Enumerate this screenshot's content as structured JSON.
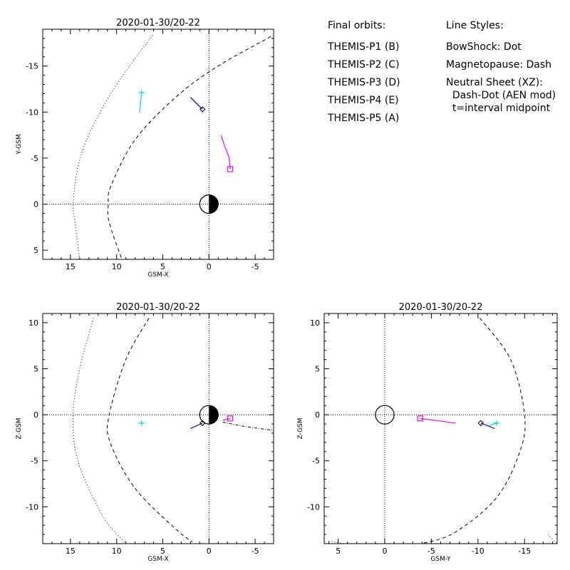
{
  "legend": {
    "orbits_title": "Final orbits:",
    "probes": [
      {
        "label": "THEMIS-P1 (B)",
        "color": "#ff0000"
      },
      {
        "label": "THEMIS-P2 (C)",
        "color": "#00dd00"
      },
      {
        "label": "THEMIS-P3 (D)",
        "color": "#00dddd"
      },
      {
        "label": "THEMIS-P4 (E)",
        "color": "#0000cc"
      },
      {
        "label": "THEMIS-P5 (A)",
        "color": "#ee00ee"
      }
    ],
    "styles_title": "Line Styles:",
    "styles": [
      "BowShock: Dot",
      "Magnetopause: Dash",
      "Neutral Sheet (XZ):",
      "  Dash-Dot (AEN mod)",
      "  t=interval midpoint"
    ]
  },
  "chart_data": [
    {
      "type": "line",
      "title": "2020-01-30/20-22",
      "xlabel": "GSM-X",
      "ylabel": "Y-GSM",
      "xlim": [
        18,
        -7
      ],
      "ylim": [
        6,
        -19
      ],
      "xticks": [
        15,
        10,
        5,
        0,
        -5
      ],
      "yticks": [
        -15,
        -10,
        -5,
        0,
        5
      ],
      "earth": {
        "x": 0,
        "y": 0,
        "radius": 1
      },
      "bow_shock": {
        "x": [
          14.0,
          14.5,
          14.7,
          14.2,
          12.8,
          10.0,
          6.0
        ],
        "y": [
          6,
          2,
          0,
          -4,
          -8,
          -13,
          -18.5
        ]
      },
      "magnetopause": {
        "x": [
          9.5,
          10.8,
          10.9,
          10.6,
          8.0,
          3.5,
          -1.0,
          -6.7
        ],
        "y": [
          5.8,
          2,
          0,
          -2,
          -7,
          -11.7,
          -15,
          -18.2
        ]
      },
      "orbits": [
        {
          "probe": "THEMIS-P3 (D)",
          "color": "#00dddd",
          "marker": "plus",
          "x": [
            7.5,
            7.3
          ],
          "y": [
            -10.0,
            -12.1
          ]
        },
        {
          "probe": "THEMIS-P4 (E)",
          "color": "#0000cc",
          "marker": "diamond",
          "x": [
            2.0,
            0.7
          ],
          "y": [
            -11.6,
            -10.3
          ]
        },
        {
          "probe": "THEMIS-P5 (A)",
          "color": "#ee00ee",
          "marker": "square",
          "x": [
            -1.3,
            -1.7,
            -2.2,
            -2.3
          ],
          "y": [
            -7.5,
            -6.3,
            -5.0,
            -3.8
          ]
        }
      ]
    },
    {
      "type": "line",
      "title": "2020-01-30/20-22",
      "xlabel": "GSM-X",
      "ylabel": "Z-GSM",
      "xlim": [
        18,
        -7
      ],
      "ylim": [
        -14,
        11
      ],
      "xticks": [
        15,
        10,
        5,
        0,
        -5
      ],
      "yticks": [
        10,
        5,
        0,
        -5,
        -10
      ],
      "earth": {
        "x": 0,
        "y": 0,
        "radius": 1
      },
      "bow_shock": {
        "x": [
          12.5,
          14.0,
          14.7,
          14.2,
          11.5,
          9.0
        ],
        "y": [
          10.5,
          5,
          0,
          -5,
          -11,
          -14
        ]
      },
      "magnetopause": {
        "x": [
          6.5,
          9.0,
          10.8,
          10.7,
          8.0,
          3.5,
          1.8
        ],
        "y": [
          10.5,
          6,
          0,
          -3,
          -8,
          -12.5,
          -13.8
        ]
      },
      "neutral_sheet": {
        "x": [
          -1.5,
          -3.5,
          -5.5,
          -7
        ],
        "y": [
          -0.8,
          -1.2,
          -1.5,
          -1.7
        ]
      },
      "orbits": [
        {
          "probe": "THEMIS-P3 (D)",
          "color": "#00dddd",
          "marker": "plus",
          "x": [
            7.6,
            7.3
          ],
          "y": [
            -0.9,
            -0.9
          ]
        },
        {
          "probe": "THEMIS-P4 (E)",
          "color": "#0000cc",
          "marker": "diamond",
          "x": [
            2.0,
            0.7
          ],
          "y": [
            -1.5,
            -0.9
          ]
        },
        {
          "probe": "THEMIS-P5 (A)",
          "color": "#ee00ee",
          "marker": "square",
          "x": [
            -1.5,
            -2.3
          ],
          "y": [
            -0.6,
            -0.4
          ]
        }
      ]
    },
    {
      "type": "line",
      "title": "2020-01-30/20-22",
      "xlabel": "GSM-Y",
      "ylabel": "Z-GSM",
      "xlim": [
        6.5,
        -18.5
      ],
      "ylim": [
        -14,
        11
      ],
      "xticks": [
        5,
        0,
        -5,
        -10,
        -15
      ],
      "yticks": [
        10,
        5,
        0,
        -5,
        -10
      ],
      "earth": {
        "x": 0,
        "y": 0,
        "radius": 1
      },
      "bow_shock": {
        "x": [
          6.0,
          4.5
        ],
        "y": [
          -13.7,
          -14
        ],
        "x2": [
          -17.5,
          -18.5
        ],
        "y2": [
          -13,
          -14
        ]
      },
      "magnetopause": {
        "x": [
          -10.2,
          -13.5,
          -15.0,
          -14.5,
          -12.0,
          -7.5,
          -4.0
        ],
        "y": [
          10.5,
          6,
          0,
          -4,
          -9,
          -12.8,
          -14
        ]
      },
      "orbits": [
        {
          "probe": "THEMIS-P5 (A)",
          "color": "#ee00ee",
          "marker": "square",
          "x": [
            -7.6,
            -3.8
          ],
          "y": [
            -0.9,
            -0.4
          ]
        },
        {
          "probe": "THEMIS-P4 (E)",
          "color": "#0000cc",
          "marker": "diamond",
          "x": [
            -11.8,
            -10.3
          ],
          "y": [
            -1.5,
            -0.9
          ]
        },
        {
          "probe": "THEMIS-P3 (D)",
          "color": "#00dddd",
          "marker": "plus",
          "x": [
            -11.2,
            -12.0
          ],
          "y": [
            -1.2,
            -0.9
          ]
        }
      ]
    }
  ]
}
